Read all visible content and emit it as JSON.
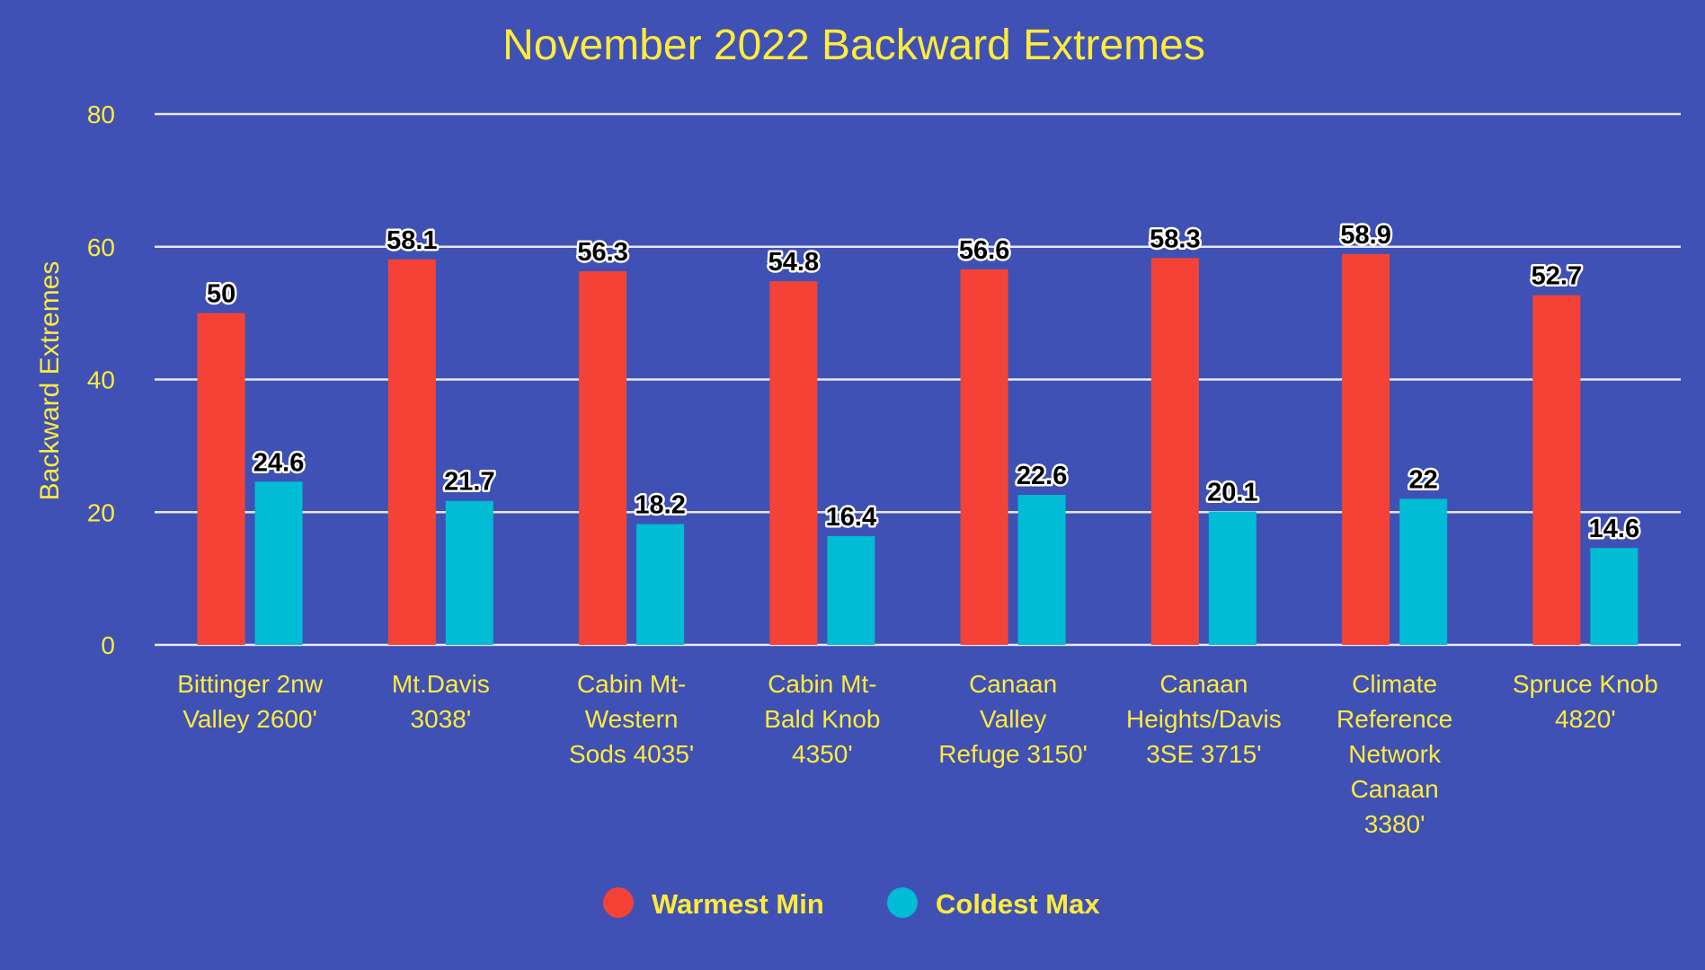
{
  "chart_data": {
    "type": "bar",
    "title": "November 2022 Backward Extremes",
    "xlabel": "",
    "ylabel": "Backward Extremes",
    "ylim": [
      0,
      80
    ],
    "yticks": [
      0,
      20,
      40,
      60,
      80
    ],
    "grid": true,
    "legend_position": "bottom",
    "categories": [
      [
        "Bittinger 2nw",
        "Valley 2600'"
      ],
      [
        "Mt.Davis",
        "3038'"
      ],
      [
        "Cabin Mt-",
        "Western",
        "Sods 4035'"
      ],
      [
        "Cabin Mt-",
        "Bald Knob",
        "4350'"
      ],
      [
        "Canaan",
        "Valley",
        "Refuge 3150'"
      ],
      [
        "Canaan",
        "Heights/Davis",
        "3SE 3715'"
      ],
      [
        "Climate",
        "Reference",
        "Network",
        "Canaan",
        "3380'"
      ],
      [
        "Spruce Knob",
        "4820'"
      ]
    ],
    "series": [
      {
        "name": "Warmest Min",
        "color": "#f44336",
        "values": [
          50,
          58.1,
          56.3,
          54.8,
          56.6,
          58.3,
          58.9,
          52.7
        ]
      },
      {
        "name": "Coldest Max",
        "color": "#00bcd4",
        "values": [
          24.6,
          21.7,
          18.2,
          16.4,
          22.6,
          20.1,
          22,
          14.6
        ]
      }
    ]
  }
}
